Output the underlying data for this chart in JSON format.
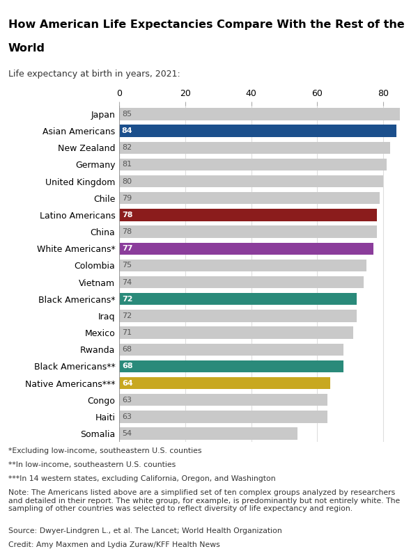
{
  "title_line1": "How American Life Expectancies Compare With the Rest of the",
  "title_line2": "World",
  "subtitle": "Life expectancy at birth in years, 2021:",
  "categories": [
    "Japan",
    "Asian Americans",
    "New Zealand",
    "Germany",
    "United Kingdom",
    "Chile",
    "Latino Americans",
    "China",
    "White Americans*",
    "Colombia",
    "Vietnam",
    "Black Americans*",
    "Iraq",
    "Mexico",
    "Rwanda",
    "Black Americans**",
    "Native Americans***",
    "Congo",
    "Haiti",
    "Somalia"
  ],
  "values": [
    85,
    84,
    82,
    81,
    80,
    79,
    78,
    78,
    77,
    75,
    74,
    72,
    72,
    71,
    68,
    68,
    64,
    63,
    63,
    54
  ],
  "colors": [
    "#c9c9c9",
    "#1b4f8c",
    "#c9c9c9",
    "#c9c9c9",
    "#c9c9c9",
    "#c9c9c9",
    "#8b1c1c",
    "#c9c9c9",
    "#8b3d9b",
    "#c9c9c9",
    "#c9c9c9",
    "#2a8a7a",
    "#c9c9c9",
    "#c9c9c9",
    "#c9c9c9",
    "#2a8a7a",
    "#c8a820",
    "#c9c9c9",
    "#c9c9c9",
    "#c9c9c9"
  ],
  "label_colors": [
    "#555555",
    "#ffffff",
    "#555555",
    "#555555",
    "#555555",
    "#555555",
    "#ffffff",
    "#555555",
    "#ffffff",
    "#555555",
    "#555555",
    "#ffffff",
    "#555555",
    "#555555",
    "#555555",
    "#ffffff",
    "#ffffff",
    "#555555",
    "#555555",
    "#555555"
  ],
  "xlim": [
    0,
    88
  ],
  "xticks": [
    0,
    20,
    40,
    60,
    80
  ],
  "footnotes": [
    "*Excluding low-income, southeastern U.S. counties",
    "**In low-income, southeastern U.S. counties",
    "***In 14 western states, excluding California, Oregon, and Washington",
    "Note: The Americans listed above are a simplified set of ten complex groups analyzed by researchers\nand detailed in their report. The white group, for example, is predominantly but not entirely white. The\nsampling of other countries was selected to reflect diversity of life expectancy and region.",
    "Source: Dwyer-Lindgren L., et al. The Lancet; World Health Organization",
    "Credit: Amy Maxmen and Lydia Zuraw/KFF Health News"
  ],
  "bg_color": "#ffffff"
}
